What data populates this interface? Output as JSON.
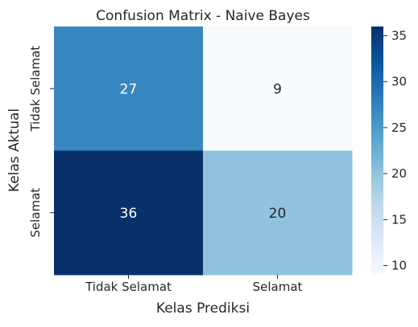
{
  "chart_data": {
    "type": "heatmap",
    "title": "Confusion Matrix - Naive Bayes",
    "xlabel": "Kelas Prediksi",
    "ylabel": "Kelas Aktual",
    "x_categories": [
      "Tidak Selamat",
      "Selamat"
    ],
    "y_categories": [
      "Tidak Selamat",
      "Selamat"
    ],
    "values": [
      [
        27,
        9
      ],
      [
        36,
        20
      ]
    ],
    "colormap": "Blues",
    "colorbar": {
      "range": [
        9,
        36
      ],
      "ticks": [
        10,
        15,
        20,
        25,
        30,
        35
      ]
    }
  }
}
